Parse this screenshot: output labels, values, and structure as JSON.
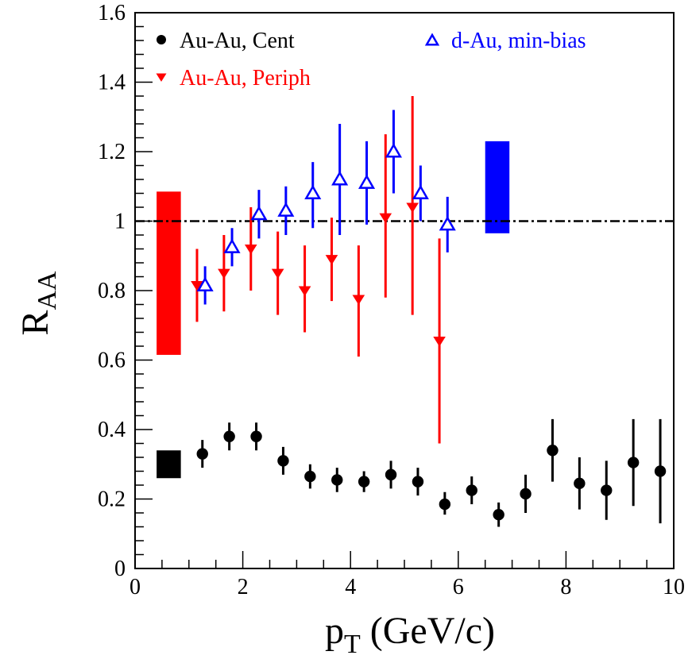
{
  "chart_data": {
    "type": "scatter",
    "xlabel": "p",
    "xlabel_sub": "T",
    "xlabel_unit": " (GeV/c)",
    "ylabel": "R",
    "ylabel_sub": "AA",
    "xlim": [
      0,
      10
    ],
    "ylim": [
      0,
      1.6
    ],
    "x_ticks": [
      "0",
      "2",
      "4",
      "6",
      "8",
      "10"
    ],
    "y_ticks": [
      "0",
      "0.2",
      "0.4",
      "0.6",
      "0.8",
      "1",
      "1.2",
      "1.4",
      "1.6"
    ],
    "reference_line": {
      "y": 1,
      "style": "dash-dot"
    },
    "series": [
      {
        "name": "Au-Au, Cent",
        "marker": "circle",
        "color": "#000000",
        "points": [
          {
            "x": 1.25,
            "y": 0.33,
            "lo": 0.29,
            "hi": 0.37
          },
          {
            "x": 1.75,
            "y": 0.38,
            "lo": 0.34,
            "hi": 0.42
          },
          {
            "x": 2.25,
            "y": 0.38,
            "lo": 0.34,
            "hi": 0.42
          },
          {
            "x": 2.75,
            "y": 0.31,
            "lo": 0.27,
            "hi": 0.35
          },
          {
            "x": 3.25,
            "y": 0.265,
            "lo": 0.23,
            "hi": 0.3
          },
          {
            "x": 3.75,
            "y": 0.255,
            "lo": 0.22,
            "hi": 0.29
          },
          {
            "x": 4.25,
            "y": 0.25,
            "lo": 0.22,
            "hi": 0.28
          },
          {
            "x": 4.75,
            "y": 0.27,
            "lo": 0.23,
            "hi": 0.31
          },
          {
            "x": 5.25,
            "y": 0.25,
            "lo": 0.21,
            "hi": 0.29
          },
          {
            "x": 5.75,
            "y": 0.185,
            "lo": 0.155,
            "hi": 0.22
          },
          {
            "x": 6.25,
            "y": 0.225,
            "lo": 0.185,
            "hi": 0.265
          },
          {
            "x": 6.75,
            "y": 0.155,
            "lo": 0.12,
            "hi": 0.19
          },
          {
            "x": 7.25,
            "y": 0.215,
            "lo": 0.16,
            "hi": 0.27
          },
          {
            "x": 7.75,
            "y": 0.34,
            "lo": 0.25,
            "hi": 0.43
          },
          {
            "x": 8.25,
            "y": 0.245,
            "lo": 0.17,
            "hi": 0.32
          },
          {
            "x": 8.75,
            "y": 0.225,
            "lo": 0.14,
            "hi": 0.31
          },
          {
            "x": 9.25,
            "y": 0.305,
            "lo": 0.18,
            "hi": 0.43
          },
          {
            "x": 9.75,
            "y": 0.28,
            "lo": 0.13,
            "hi": 0.43
          }
        ],
        "sys_box": {
          "x0": 0.4,
          "x1": 0.85,
          "lo": 0.26,
          "hi": 0.34
        }
      },
      {
        "name": "Au-Au, Periph",
        "marker": "triangle-down",
        "color": "#ff0000",
        "points": [
          {
            "x": 1.15,
            "y": 0.815,
            "lo": 0.71,
            "hi": 0.92
          },
          {
            "x": 1.65,
            "y": 0.85,
            "lo": 0.74,
            "hi": 0.96
          },
          {
            "x": 2.15,
            "y": 0.92,
            "lo": 0.8,
            "hi": 1.04
          },
          {
            "x": 2.65,
            "y": 0.85,
            "lo": 0.73,
            "hi": 0.97
          },
          {
            "x": 3.15,
            "y": 0.8,
            "lo": 0.68,
            "hi": 0.93
          },
          {
            "x": 3.65,
            "y": 0.89,
            "lo": 0.77,
            "hi": 1.01
          },
          {
            "x": 4.15,
            "y": 0.775,
            "lo": 0.61,
            "hi": 0.93
          },
          {
            "x": 4.65,
            "y": 1.01,
            "lo": 0.78,
            "hi": 1.25
          },
          {
            "x": 5.15,
            "y": 1.04,
            "lo": 0.73,
            "hi": 1.36
          },
          {
            "x": 5.65,
            "y": 0.655,
            "lo": 0.36,
            "hi": 0.95
          }
        ],
        "sys_box": {
          "x0": 0.4,
          "x1": 0.85,
          "lo": 0.615,
          "hi": 1.085
        }
      },
      {
        "name": "d-Au, min-bias",
        "marker": "triangle-up-open",
        "color": "#0000ff",
        "points": [
          {
            "x": 1.3,
            "y": 0.815,
            "lo": 0.76,
            "hi": 0.87
          },
          {
            "x": 1.8,
            "y": 0.925,
            "lo": 0.87,
            "hi": 0.98
          },
          {
            "x": 2.3,
            "y": 1.02,
            "lo": 0.95,
            "hi": 1.09
          },
          {
            "x": 2.8,
            "y": 1.03,
            "lo": 0.96,
            "hi": 1.1
          },
          {
            "x": 3.3,
            "y": 1.08,
            "lo": 0.98,
            "hi": 1.17
          },
          {
            "x": 3.8,
            "y": 1.12,
            "lo": 0.96,
            "hi": 1.28
          },
          {
            "x": 4.3,
            "y": 1.11,
            "lo": 0.99,
            "hi": 1.23
          },
          {
            "x": 4.8,
            "y": 1.2,
            "lo": 1.08,
            "hi": 1.32
          },
          {
            "x": 5.3,
            "y": 1.08,
            "lo": 1.0,
            "hi": 1.16
          },
          {
            "x": 5.8,
            "y": 0.99,
            "lo": 0.91,
            "hi": 1.07
          }
        ],
        "sys_box": {
          "x0": 6.5,
          "x1": 6.95,
          "lo": 0.965,
          "hi": 1.23
        }
      }
    ],
    "legend": {
      "entries": [
        {
          "label": "Au-Au, Cent",
          "marker": "circle",
          "color": "#000000"
        },
        {
          "label": "Au-Au, Periph",
          "marker": "triangle-down",
          "color": "#ff0000"
        },
        {
          "label": "d-Au, min-bias",
          "marker": "triangle-up-open",
          "color": "#0000ff"
        }
      ]
    }
  }
}
